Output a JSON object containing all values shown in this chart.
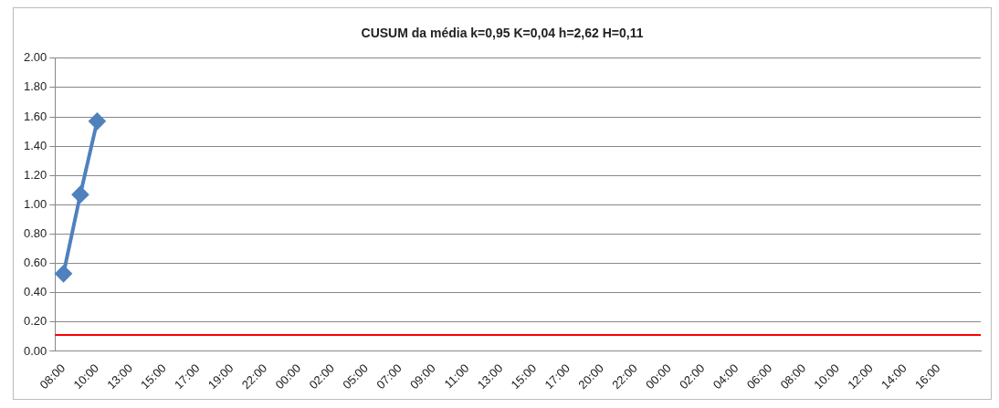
{
  "chart_data": {
    "type": "line",
    "title": "CUSUM da média k=0,95 K=0,04 h=2,62 H=0,11",
    "categories": [
      "08:00",
      null,
      "10:00",
      null,
      "13:00",
      null,
      "15:00",
      null,
      "17:00",
      null,
      "19:00",
      null,
      "22:00",
      null,
      "00:00",
      null,
      "02:00",
      null,
      "05:00",
      null,
      "07:00",
      null,
      "09:00",
      null,
      "11:00",
      null,
      "13:00",
      null,
      "15:00",
      null,
      "17:00",
      null,
      "20:00",
      null,
      "22:00",
      null,
      "00:00",
      null,
      "02:00",
      null,
      "04:00",
      null,
      "06:00",
      null,
      "08:00",
      null,
      "10:00",
      null,
      "12:00",
      null,
      "14:00",
      null,
      "16:00",
      null,
      null
    ],
    "series": [
      {
        "color": "#4f81bd",
        "values": [
          0.53,
          1.07,
          1.57,
          null,
          null,
          null,
          null,
          null,
          null,
          null,
          null,
          null,
          null,
          null,
          null,
          null,
          null,
          null,
          null,
          null,
          null,
          null,
          null,
          null,
          null,
          null,
          null,
          null,
          null,
          null,
          null,
          null,
          null,
          null,
          null,
          null,
          null,
          null,
          null,
          null,
          null,
          null,
          null,
          null,
          null,
          null,
          null,
          null,
          null,
          null,
          null,
          null,
          null,
          null,
          null
        ]
      }
    ],
    "ylim": [
      0,
      2
    ],
    "yticks": [
      {
        "value": 0,
        "label": "0.00"
      },
      {
        "value": 0.2,
        "label": "0.20"
      },
      {
        "value": 0.4,
        "label": "0.40"
      },
      {
        "value": 0.6,
        "label": "0.60"
      },
      {
        "value": 0.8,
        "label": "0.80"
      },
      {
        "value": 1,
        "label": "1.00"
      },
      {
        "value": 1.2,
        "label": "1.20"
      },
      {
        "value": 1.4,
        "label": "1.40"
      },
      {
        "value": 1.6,
        "label": "1.60"
      },
      {
        "value": 1.8,
        "label": "1.80"
      },
      {
        "value": 2,
        "label": "2.00"
      }
    ],
    "ref_lines": [
      {
        "axis": "y",
        "value": 0.11,
        "color": "#ff0000"
      }
    ],
    "grid": "y",
    "legend": false,
    "marker": "diamond",
    "line_style": "solid"
  }
}
